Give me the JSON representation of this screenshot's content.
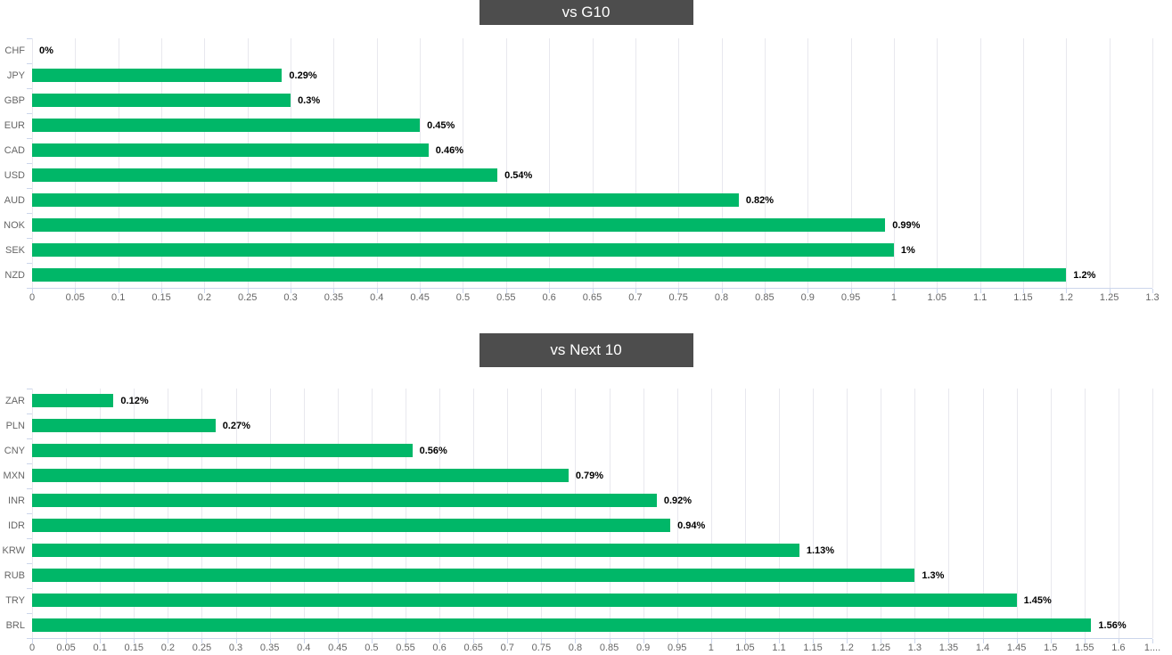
{
  "colors": {
    "bar": "#00b768",
    "banner_bg": "#4d4d4d",
    "banner_text": "#ffffff",
    "gridline": "#e8e8ee",
    "axis_tick": "#ccd6eb",
    "axis_label": "#666666",
    "value_label": "#000000"
  },
  "chart_data": [
    {
      "type": "bar",
      "orientation": "horizontal",
      "title": "vs G10",
      "categories": [
        "CHF",
        "JPY",
        "GBP",
        "EUR",
        "CAD",
        "USD",
        "AUD",
        "NOK",
        "SEK",
        "NZD"
      ],
      "values": [
        0,
        0.29,
        0.3,
        0.45,
        0.46,
        0.54,
        0.82,
        0.99,
        1,
        1.2
      ],
      "value_labels": [
        "0%",
        "0.29%",
        "0.3%",
        "0.45%",
        "0.46%",
        "0.54%",
        "0.82%",
        "0.99%",
        "1%",
        "1.2%"
      ],
      "xlabel": "",
      "ylabel": "",
      "xlim": [
        0,
        1.3
      ],
      "tick_step": 0.05,
      "tick_labels": [
        "0",
        "0.05",
        "0.1",
        "0.15",
        "0.2",
        "0.25",
        "0.3",
        "0.35",
        "0.4",
        "0.45",
        "0.5",
        "0.55",
        "0.6",
        "0.65",
        "0.7",
        "0.75",
        "0.8",
        "0.85",
        "0.9",
        "0.95",
        "1",
        "1.05",
        "1.1",
        "1.15",
        "1.2",
        "1.25",
        "1.3"
      ],
      "bar_color": "#00b768",
      "grid": true,
      "legend": "none"
    },
    {
      "type": "bar",
      "orientation": "horizontal",
      "title": "vs Next 10",
      "categories": [
        "ZAR",
        "PLN",
        "CNY",
        "MXN",
        "INR",
        "IDR",
        "KRW",
        "RUB",
        "TRY",
        "BRL"
      ],
      "values": [
        0.12,
        0.27,
        0.56,
        0.79,
        0.92,
        0.94,
        1.13,
        1.3,
        1.45,
        1.56
      ],
      "value_labels": [
        "0.12%",
        "0.27%",
        "0.56%",
        "0.79%",
        "0.92%",
        "0.94%",
        "1.13%",
        "1.3%",
        "1.45%",
        "1.56%"
      ],
      "xlabel": "",
      "ylabel": "",
      "xlim": [
        0,
        1.65
      ],
      "tick_step": 0.05,
      "tick_labels": [
        "0",
        "0.05",
        "0.1",
        "0.15",
        "0.2",
        "0.25",
        "0.3",
        "0.35",
        "0.4",
        "0.45",
        "0.5",
        "0.55",
        "0.6",
        "0.65",
        "0.7",
        "0.75",
        "0.8",
        "0.85",
        "0.9",
        "0.95",
        "1",
        "1.05",
        "1.1",
        "1.15",
        "1.2",
        "1.25",
        "1.3",
        "1.35",
        "1.4",
        "1.45",
        "1.5",
        "1.55",
        "1.6",
        "1...."
      ],
      "bar_color": "#00b768",
      "grid": true,
      "legend": "none"
    }
  ]
}
